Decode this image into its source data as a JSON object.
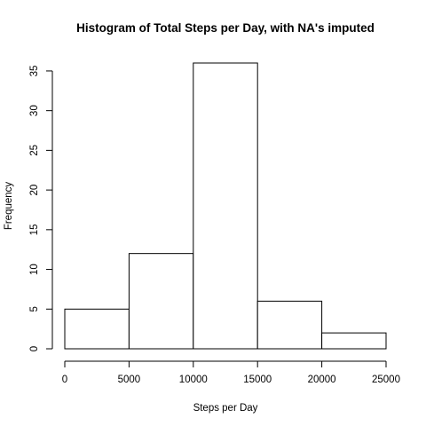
{
  "chart_data": {
    "type": "bar",
    "title": "Histogram of Total Steps per Day, with NA's imputed",
    "xlabel": "Steps per Day",
    "ylabel": "Frequency",
    "bins": [
      {
        "from": 0,
        "to": 5000,
        "value": 5
      },
      {
        "from": 5000,
        "to": 10000,
        "value": 12
      },
      {
        "from": 10000,
        "to": 15000,
        "value": 36
      },
      {
        "from": 15000,
        "to": 20000,
        "value": 6
      },
      {
        "from": 20000,
        "to": 25000,
        "value": 2
      }
    ],
    "xlim": [
      0,
      25000
    ],
    "ylim": [
      0,
      36
    ],
    "xticks": [
      0,
      5000,
      10000,
      15000,
      20000,
      25000
    ],
    "yticks": [
      0,
      5,
      10,
      15,
      20,
      25,
      30,
      35
    ],
    "grid": false,
    "legend": "none"
  }
}
